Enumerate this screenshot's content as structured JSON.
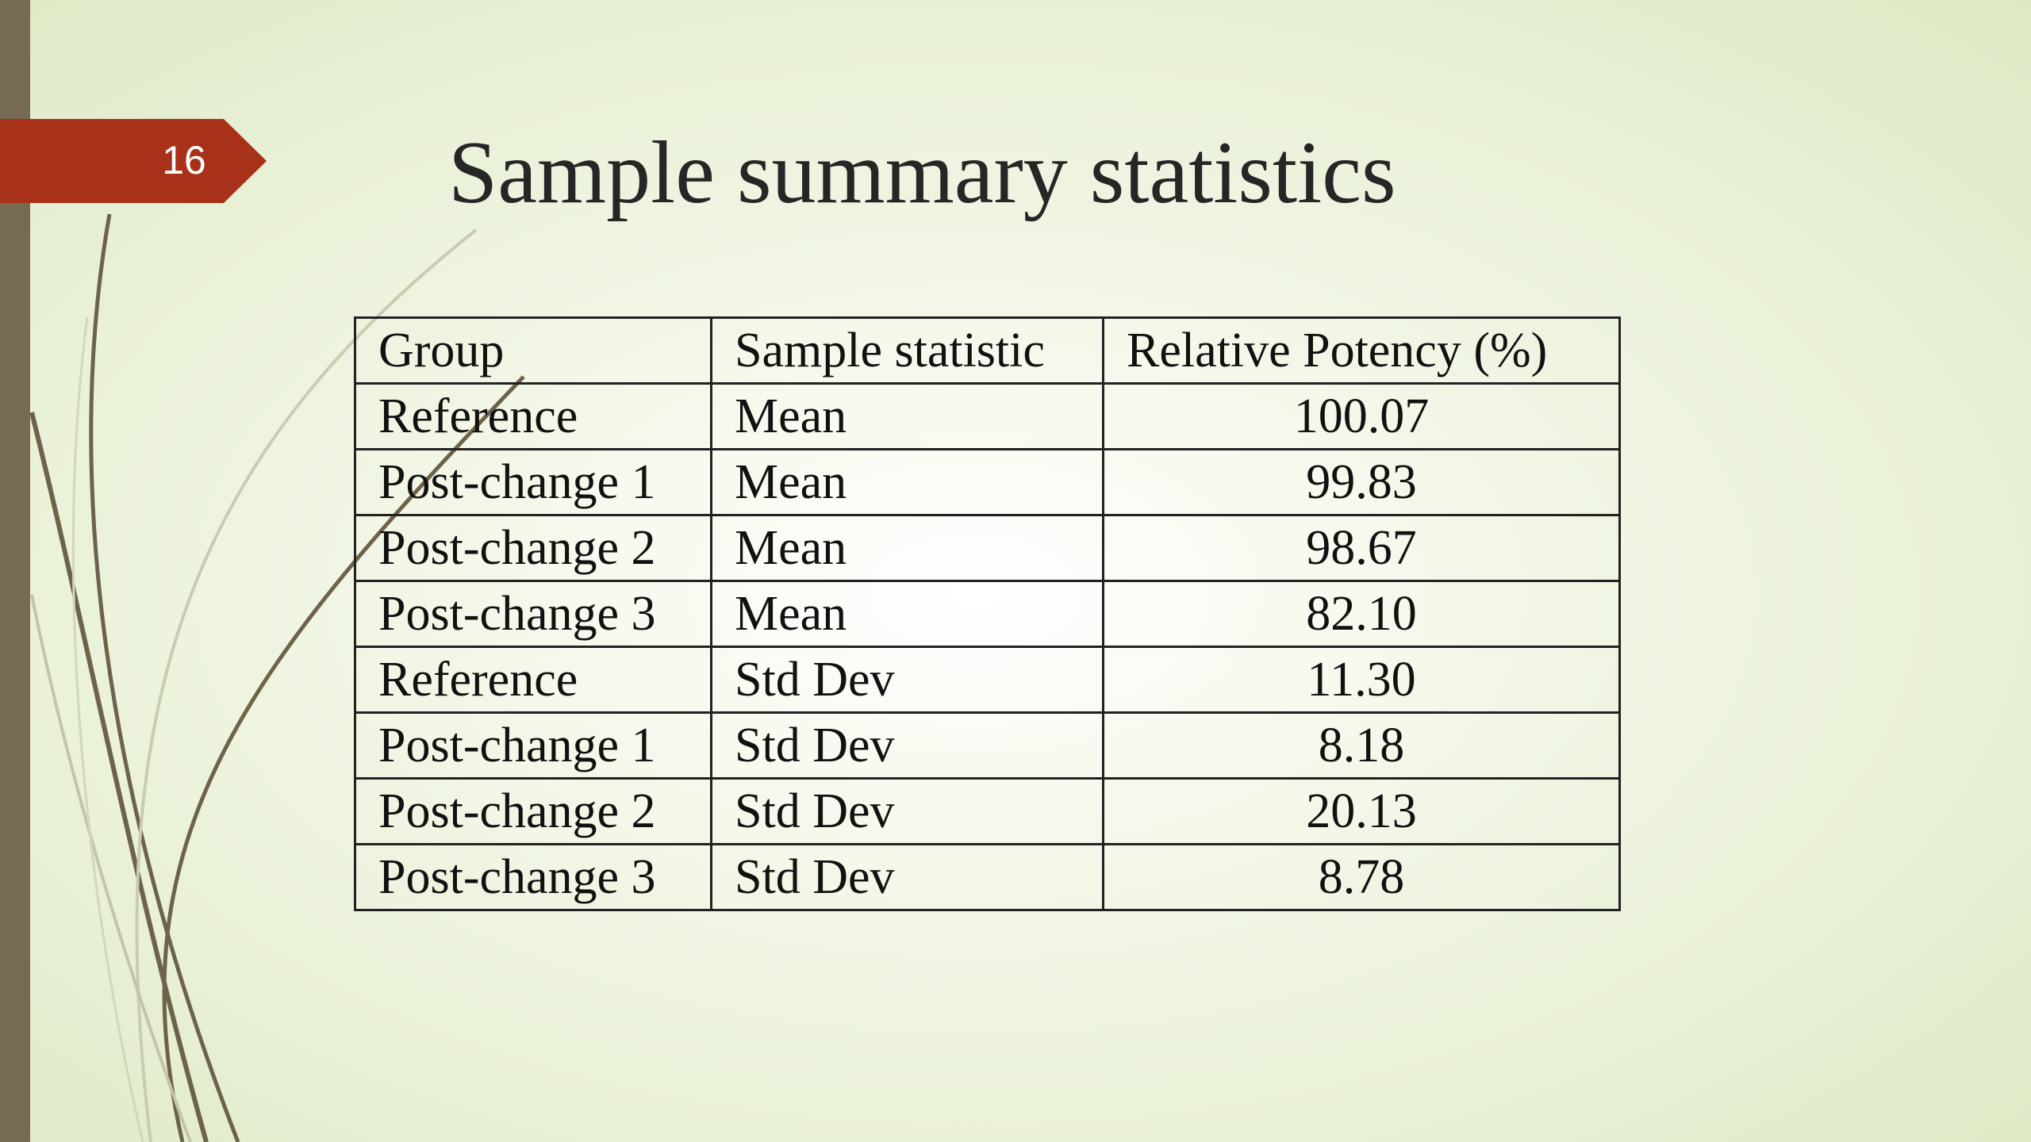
{
  "slide": {
    "number": "16",
    "title": "Sample summary statistics"
  },
  "table": {
    "headers": [
      "Group",
      "Sample statistic",
      "Relative Potency (%)"
    ],
    "rows": [
      [
        "Reference",
        "Mean",
        "100.07"
      ],
      [
        "Post-change 1",
        "Mean",
        "99.83"
      ],
      [
        "Post-change 2",
        "Mean",
        "98.67"
      ],
      [
        "Post-change 3",
        "Mean",
        "82.10"
      ],
      [
        "Reference",
        "Std Dev",
        "11.30"
      ],
      [
        "Post-change 1",
        "Std Dev",
        "8.18"
      ],
      [
        "Post-change 2",
        "Std Dev",
        "20.13"
      ],
      [
        "Post-change 3",
        "Std Dev",
        "8.78"
      ]
    ]
  },
  "colors": {
    "accent": "#a83219",
    "sidebar": "#766a52",
    "curves": "#6e6249"
  }
}
